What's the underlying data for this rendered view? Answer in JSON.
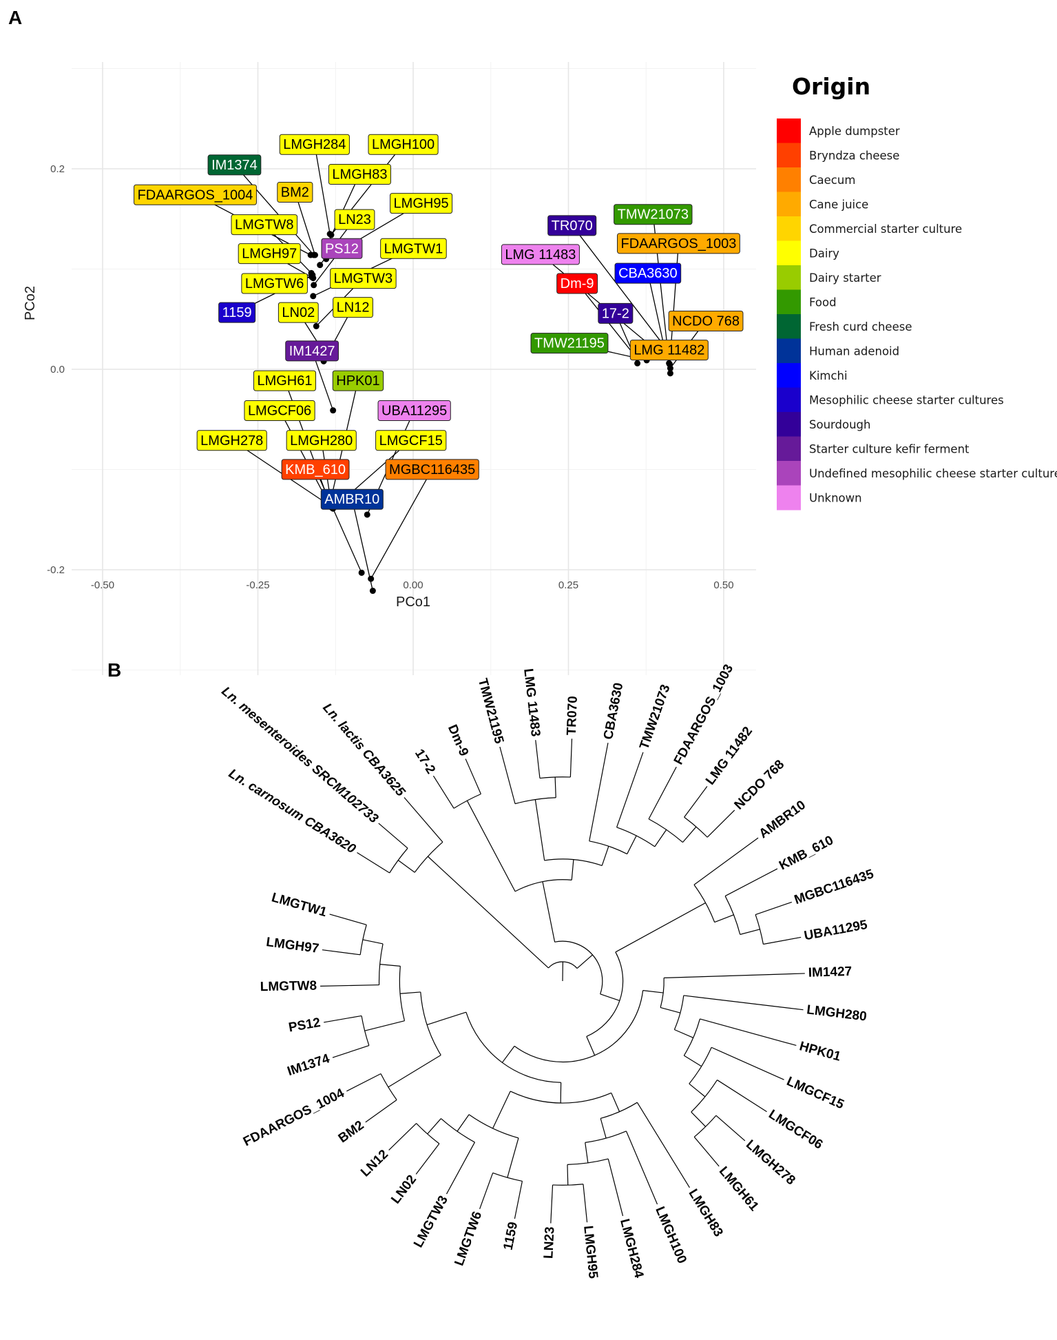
{
  "figure": {
    "panel_a": "A",
    "panel_b": "B"
  },
  "chart_data": [
    {
      "type": "scatter",
      "title": "",
      "xlabel": "PCo1",
      "ylabel": "PCo2",
      "xlim": [
        -0.55,
        0.55
      ],
      "ylim": [
        -0.3,
        0.3
      ],
      "xticks": [
        "-0.50",
        "-0.25",
        "0.00",
        "0.25",
        "0.50"
      ],
      "xtick_values": [
        -0.5,
        -0.25,
        0,
        0.25,
        0.5
      ],
      "yticks": [
        "0.2",
        "0.0",
        "-0.2"
      ],
      "ytick_values": [
        0.2,
        0,
        -0.2
      ],
      "grid": true,
      "legend": {
        "title": "Origin",
        "placement": "right",
        "items": [
          {
            "label": "Apple dumpster",
            "color": "#FF0000"
          },
          {
            "label": "Bryndza cheese",
            "color": "#FF4000"
          },
          {
            "label": "Caecum",
            "color": "#FF8000"
          },
          {
            "label": "Cane juice",
            "color": "#FFAA00"
          },
          {
            "label": "Commercial starter culture",
            "color": "#FFD500"
          },
          {
            "label": "Dairy",
            "color": "#FFFF00"
          },
          {
            "label": "Dairy starter",
            "color": "#99CC00"
          },
          {
            "label": "Food",
            "color": "#339900"
          },
          {
            "label": "Fresh curd cheese",
            "color": "#006633"
          },
          {
            "label": "Human adenoid",
            "color": "#003399"
          },
          {
            "label": "Kimchi",
            "color": "#0000FF"
          },
          {
            "label": "Mesophilic cheese starter cultures",
            "color": "#1A00CC"
          },
          {
            "label": "Sourdough",
            "color": "#330099"
          },
          {
            "label": "Starter culture kefir  ferment",
            "color": "#661A99"
          },
          {
            "label": "Undefined mesophilic cheese starter culture",
            "color": "#AA44BB"
          },
          {
            "label": "Unknown",
            "color": "#EE82EE"
          }
        ]
      },
      "points": [
        {
          "label": "LMGH284",
          "x": -0.134,
          "y": 0.135,
          "origin": "Dairy"
        },
        {
          "label": "LMGH100",
          "x": -0.132,
          "y": 0.134,
          "origin": "Dairy"
        },
        {
          "label": "IM1374",
          "x": -0.16,
          "y": 0.114,
          "origin": "Fresh curd cheese"
        },
        {
          "label": "LMGH83",
          "x": -0.138,
          "y": 0.125,
          "origin": "Dairy"
        },
        {
          "label": "FDAARGOS_1004",
          "x": -0.165,
          "y": 0.114,
          "origin": "Commercial starter culture"
        },
        {
          "label": "BM2",
          "x": -0.158,
          "y": 0.114,
          "origin": "Commercial starter culture"
        },
        {
          "label": "LMGH95",
          "x": -0.14,
          "y": 0.11,
          "origin": "Dairy"
        },
        {
          "label": "LN23",
          "x": -0.15,
          "y": 0.104,
          "origin": "Dairy"
        },
        {
          "label": "LMGTW8",
          "x": -0.164,
          "y": 0.096,
          "origin": "Dairy"
        },
        {
          "label": "PS12",
          "x": -0.16,
          "y": 0.084,
          "origin": "Undefined mesophilic cheese starter culture"
        },
        {
          "label": "LMGTW1",
          "x": -0.161,
          "y": 0.073,
          "origin": "Dairy"
        },
        {
          "label": "LMGH97",
          "x": -0.161,
          "y": 0.091,
          "origin": "Dairy"
        },
        {
          "label": "LMGTW3",
          "x": -0.156,
          "y": 0.043,
          "origin": "Dairy"
        },
        {
          "label": "LMGTW6",
          "x": -0.163,
          "y": 0.092,
          "origin": "Dairy"
        },
        {
          "label": "1159",
          "x": -0.162,
          "y": 0.094,
          "origin": "Mesophilic cheese starter cultures"
        },
        {
          "label": "LN02",
          "x": -0.15,
          "y": 0.023,
          "origin": "Dairy"
        },
        {
          "label": "LN12",
          "x": -0.144,
          "y": 0.008,
          "origin": "Dairy"
        },
        {
          "label": "IM1427",
          "x": -0.129,
          "y": -0.041,
          "origin": "Starter culture kefir  ferment"
        },
        {
          "label": "LMGH61",
          "x": -0.135,
          "y": -0.133,
          "origin": "Dairy"
        },
        {
          "label": "HPK01",
          "x": -0.134,
          "y": -0.134,
          "origin": "Dairy starter"
        },
        {
          "label": "LMGCF06",
          "x": -0.135,
          "y": -0.135,
          "origin": "Dairy"
        },
        {
          "label": "UBA11295",
          "x": -0.074,
          "y": -0.145,
          "origin": "Unknown"
        },
        {
          "label": "LMGH278",
          "x": -0.134,
          "y": -0.136,
          "origin": "Dairy"
        },
        {
          "label": "LMGH280",
          "x": -0.131,
          "y": -0.138,
          "origin": "Dairy"
        },
        {
          "label": "LMGCF15",
          "x": -0.129,
          "y": -0.139,
          "origin": "Dairy"
        },
        {
          "label": "KMB_610",
          "x": -0.083,
          "y": -0.203,
          "origin": "Bryndza cheese"
        },
        {
          "label": "MGBC116435",
          "x": -0.068,
          "y": -0.209,
          "origin": "Caecum"
        },
        {
          "label": "AMBR10",
          "x": -0.065,
          "y": -0.221,
          "origin": "Human adenoid"
        },
        {
          "label": "TMW21073",
          "x": 0.412,
          "y": 0.006,
          "origin": "Food"
        },
        {
          "label": "TR070",
          "x": 0.407,
          "y": 0.021,
          "origin": "Sourdough"
        },
        {
          "label": "FDAARGOS_1003",
          "x": 0.413,
          "y": 0.005,
          "origin": "Cane juice"
        },
        {
          "label": "LMG 11483",
          "x": 0.399,
          "y": 0.015,
          "origin": "Unknown"
        },
        {
          "label": "CBA3630",
          "x": 0.405,
          "y": 0.02,
          "origin": "Kimchi"
        },
        {
          "label": "Dm-9",
          "x": 0.355,
          "y": 0.015,
          "origin": "Apple dumpster"
        },
        {
          "label": "17-2",
          "x": 0.361,
          "y": 0.006,
          "origin": "Sourdough"
        },
        {
          "label": "NCDO 768",
          "x": 0.414,
          "y": 0.001,
          "origin": "Cane juice"
        },
        {
          "label": "TMW21195",
          "x": 0.376,
          "y": 0.009,
          "origin": "Food"
        },
        {
          "label": "LMG 11482",
          "x": 0.414,
          "y": -0.004,
          "origin": "Cane juice"
        }
      ]
    },
    {
      "type": "tree",
      "layout": "circular",
      "tree": [
        [
          [
            "Ln. carnosum CBA3620",
            "Ln. mesenteroides SRCM102733"
          ],
          "Ln. lactis CBA3625"
        ],
        [
          [
            [
              "17-2",
              "Dm-9"
            ],
            [
              [
                "TMW21195",
                [
                  "LMG 11483",
                  "TR070"
                ]
              ],
              [
                "CBA3630",
                [
                  "TMW21073",
                  [
                    "FDAARGOS_1003",
                    [
                      "LMG 11482",
                      "NCDO 768"
                    ]
                  ]
                ]
              ]
            ]
          ],
          [
            [
              "AMBR10",
              [
                "KMB_610",
                [
                  "MGBC116435",
                  "UBA11295"
                ]
              ]
            ],
            [
              [
                "IM1427",
                [
                  "LMGH280",
                  [
                    "HPK01",
                    [
                      "LMGCF15",
                      [
                        "LMGCF06",
                        [
                          "LMGH278",
                          "LMGH61"
                        ]
                      ]
                    ]
                  ]
                ]
              ],
              [
                [
                  [
                    "LMGH83",
                    [
                      "LMGH100",
                      [
                        "LMGH284",
                        [
                          "LMGH95",
                          "LN23"
                        ]
                      ]
                    ]
                  ],
                  [
                    [
                      "1159",
                      "LMGTW6"
                    ],
                    [
                      "LMGTW3",
                      [
                        "LN02",
                        "LN12"
                      ]
                    ]
                  ]
                ],
                [
                  [
                    "BM2",
                    "FDAARGOS_1004"
                  ],
                  [
                    [
                      "IM1374",
                      "PS12"
                    ],
                    [
                      "LMGTW8",
                      [
                        "LMGH97",
                        "LMGTW1"
                      ]
                    ]
                  ]
                ]
              ]
            ]
          ]
        ]
      ]
    }
  ]
}
